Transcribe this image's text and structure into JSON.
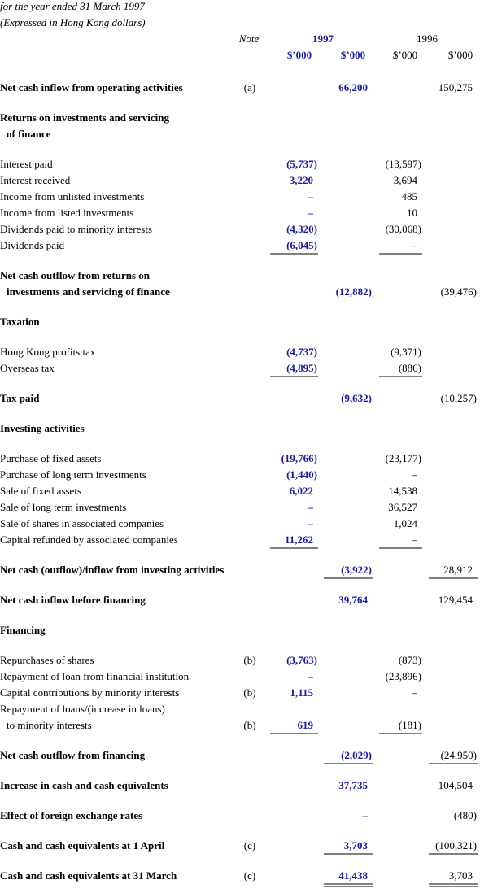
{
  "header": {
    "line1": "for the year ended 31 March 1997",
    "line2": "(Expressed in Hong Kong dollars)",
    "note": "Note",
    "year1": "1997",
    "year2": "1996",
    "units": [
      "$’000",
      "$’000",
      "$’000",
      "$’000"
    ]
  },
  "rows": [
    {
      "label": "Net cash inflow from operating activities",
      "note": "(a)",
      "amounts": [
        null,
        "66,200",
        null,
        "150,275"
      ]
    },
    {
      "label": "Returns on investments and servicing",
      "amounts": [
        null,
        null,
        null,
        null
      ]
    },
    {
      "label": "of finance",
      "amounts": [
        null,
        null,
        null,
        null
      ]
    },
    {
      "label": "Interest paid",
      "amounts": [
        "(5,737)",
        null,
        "(13,597)",
        null
      ]
    },
    {
      "label": "Interest received",
      "amounts": [
        "3,220",
        null,
        "3,694",
        null
      ]
    },
    {
      "label": "Income from unlisted investments",
      "amounts": [
        "–",
        null,
        "485",
        null
      ]
    },
    {
      "label": "Income from listed investments",
      "amounts": [
        "–",
        null,
        "10",
        null
      ]
    },
    {
      "label": "Dividends paid to minority interests",
      "amounts": [
        "(4,320)",
        null,
        "(30,068)",
        null
      ]
    },
    {
      "label": "Dividends paid",
      "amounts": [
        "(6,045)",
        null,
        "–",
        null
      ]
    },
    {
      "label": "Net cash outflow from returns on",
      "amounts": [
        null,
        null,
        null,
        null
      ]
    },
    {
      "label": "investments and servicing of finance",
      "amounts": [
        null,
        "(12,882)",
        null,
        "(39,476)"
      ]
    },
    {
      "label": "Taxation",
      "amounts": [
        null,
        null,
        null,
        null
      ]
    },
    {
      "label": "Hong Kong profits tax",
      "amounts": [
        "(4,737)",
        null,
        "(9,371)",
        null
      ]
    },
    {
      "label": "Overseas tax",
      "amounts": [
        "(4,895)",
        null,
        "(886)",
        null
      ]
    },
    {
      "label": "Tax paid",
      "amounts": [
        null,
        "(9,632)",
        null,
        "(10,257)"
      ]
    },
    {
      "label": "Investing activities",
      "amounts": [
        null,
        null,
        null,
        null
      ]
    },
    {
      "label": "Purchase of fixed assets",
      "amounts": [
        "(19,766)",
        null,
        "(23,177)",
        null
      ]
    },
    {
      "label": "Purchase of long term investments",
      "amounts": [
        "(1,440)",
        null,
        "–",
        null
      ]
    },
    {
      "label": "Sale of fixed assets",
      "amounts": [
        "6,022",
        null,
        "14,538",
        null
      ]
    },
    {
      "label": "Sale of long term investments",
      "amounts": [
        "–",
        null,
        "36,527",
        null
      ]
    },
    {
      "label": "Sale of shares in associated companies",
      "amounts": [
        "–",
        null,
        "1,024",
        null
      ]
    },
    {
      "label": "Capital refunded by associated companies",
      "amounts": [
        "11,262",
        null,
        "–",
        null
      ]
    },
    {
      "label": "Net cash (outflow)/inflow from investing activities",
      "amounts": [
        null,
        "(3,922)",
        null,
        "28,912"
      ]
    },
    {
      "label": "Net cash inflow before financing",
      "amounts": [
        null,
        "39,764",
        null,
        "129,454"
      ]
    },
    {
      "label": "Financing",
      "amounts": [
        null,
        null,
        null,
        null
      ]
    },
    {
      "label": "Repurchases of shares",
      "note": "(b)",
      "amounts": [
        "(3,763)",
        null,
        "(873)",
        null
      ]
    },
    {
      "label": "Repayment of loan from financial institution",
      "amounts": [
        "–",
        null,
        "(23,896)",
        null
      ]
    },
    {
      "label": "Capital contributions by minority interests",
      "note": "(b)",
      "amounts": [
        "1,115",
        null,
        "–",
        null
      ]
    },
    {
      "label": "Repayment of loans/(increase in loans)",
      "amounts": [
        null,
        null,
        null,
        null
      ]
    },
    {
      "label": "to minority interests",
      "note": "(b)",
      "amounts": [
        "619",
        null,
        "(181)",
        null
      ]
    },
    {
      "label": "Net cash outflow from financing",
      "amounts": [
        null,
        "(2,029)",
        null,
        "(24,950)"
      ]
    },
    {
      "label": "Increase in cash and cash equivalents",
      "amounts": [
        null,
        "37,735",
        null,
        "104,504"
      ]
    },
    {
      "label": "Effect of foreign exchange rates",
      "amounts": [
        null,
        "–",
        null,
        "(480)"
      ]
    },
    {
      "label": "Cash and cash equivalents at 1 April",
      "note": "(c)",
      "amounts": [
        null,
        "3,703",
        null,
        "(100,321)"
      ]
    },
    {
      "label": "Cash and cash equivalents at 31 March",
      "note": "(c)",
      "amounts": [
        null,
        "41,438",
        null,
        "3,703"
      ]
    }
  ]
}
